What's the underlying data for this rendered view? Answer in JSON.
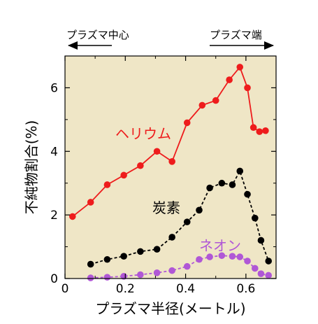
{
  "chart_data": {
    "type": "line",
    "xlabel": "プラズマ半径(メートル)",
    "ylabel": "不純物割合(%)",
    "xlim": [
      0,
      0.7
    ],
    "ylim": [
      0,
      7
    ],
    "xticks": [
      0,
      0.2,
      0.4,
      0.6
    ],
    "xtick_labels": [
      "0",
      "0.2",
      "0.4",
      "0.6"
    ],
    "yticks": [
      0,
      2,
      4,
      6
    ],
    "ytick_labels": [
      "0",
      "2",
      "4",
      "6"
    ],
    "plot_background": "#efe6c6",
    "annotations": {
      "left": "プラズマ中心",
      "right": "プラズマ端"
    },
    "series": [
      {
        "name": "ヘリウム",
        "color": "#ee1c1c",
        "line": "solid",
        "x": [
          0.025,
          0.085,
          0.14,
          0.195,
          0.25,
          0.305,
          0.355,
          0.405,
          0.455,
          0.5,
          0.545,
          0.58,
          0.605,
          0.625,
          0.645,
          0.665
        ],
        "y": [
          1.95,
          2.4,
          2.95,
          3.25,
          3.55,
          4.0,
          3.68,
          4.9,
          5.45,
          5.6,
          6.25,
          6.65,
          6.0,
          4.75,
          4.62,
          4.65
        ]
      },
      {
        "name": "炭素",
        "color": "#000000",
        "line": "dashed",
        "x": [
          0.085,
          0.14,
          0.195,
          0.25,
          0.305,
          0.355,
          0.405,
          0.445,
          0.48,
          0.52,
          0.555,
          0.58,
          0.605,
          0.63,
          0.65,
          0.675
        ],
        "y": [
          0.45,
          0.6,
          0.7,
          0.85,
          0.92,
          1.3,
          1.78,
          2.15,
          2.85,
          3.0,
          2.95,
          3.38,
          2.65,
          1.9,
          1.2,
          0.55
        ]
      },
      {
        "name": "ネオン",
        "color": "#b057d6",
        "line": "dashed",
        "x": [
          0.085,
          0.14,
          0.195,
          0.25,
          0.305,
          0.355,
          0.405,
          0.445,
          0.48,
          0.52,
          0.555,
          0.58,
          0.605,
          0.63,
          0.65,
          0.675
        ],
        "y": [
          0.02,
          0.04,
          0.07,
          0.12,
          0.18,
          0.25,
          0.38,
          0.6,
          0.68,
          0.72,
          0.7,
          0.68,
          0.55,
          0.32,
          0.15,
          0.1
        ]
      }
    ]
  }
}
